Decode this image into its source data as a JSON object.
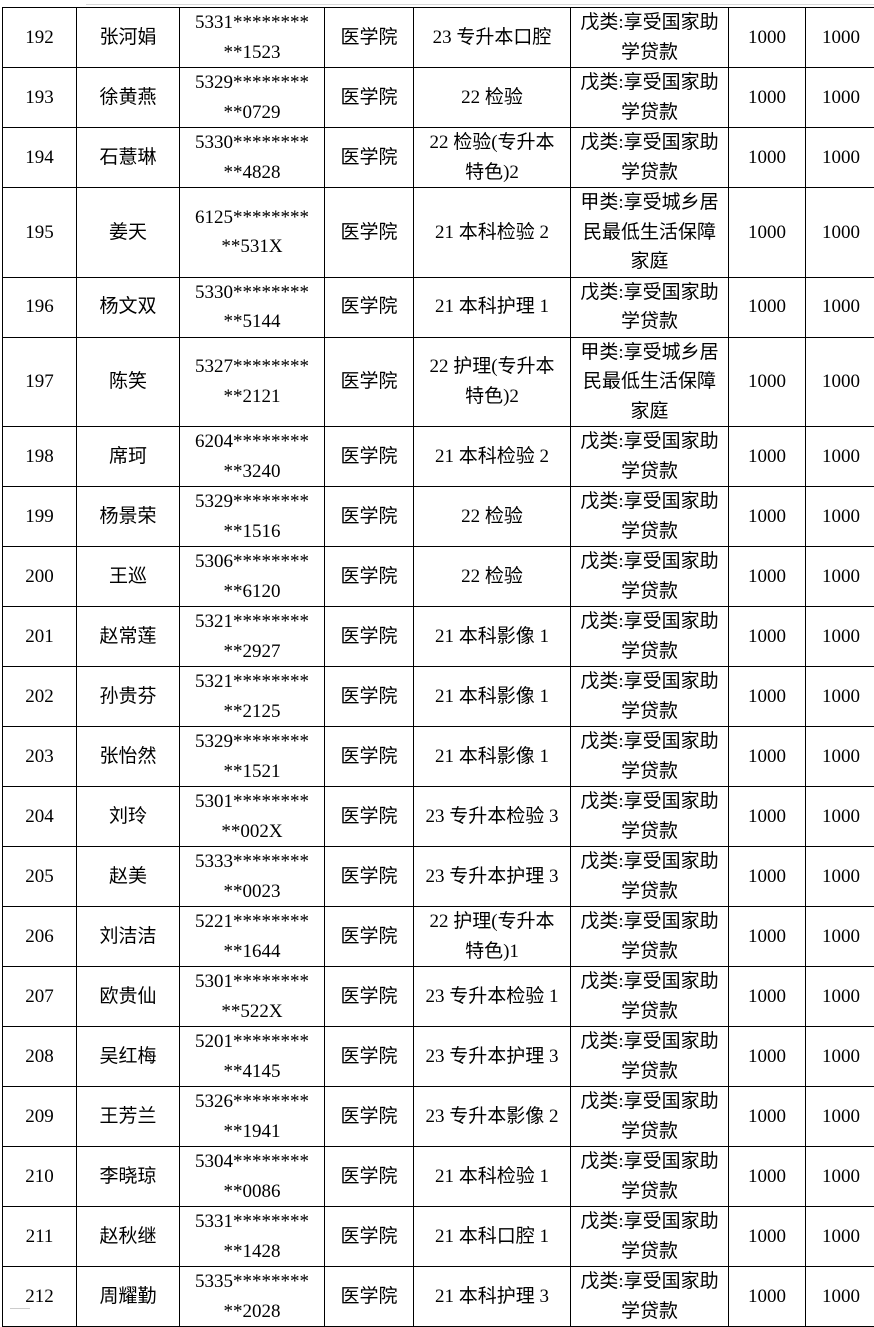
{
  "rows": [
    {
      "no": "192",
      "name": "张河娟",
      "id1": "5331********",
      "id2": "**1523",
      "college": "医学院",
      "class": "23 专升本口腔",
      "category": "戊类:享受国家助学贷款",
      "amount1": "1000",
      "amount2": "1000"
    },
    {
      "no": "193",
      "name": "徐黄燕",
      "id1": "5329********",
      "id2": "**0729",
      "college": "医学院",
      "class": "22 检验",
      "category": "戊类:享受国家助学贷款",
      "amount1": "1000",
      "amount2": "1000"
    },
    {
      "no": "194",
      "name": "石薏琳",
      "id1": "5330********",
      "id2": "**4828",
      "college": "医学院",
      "class": "22 检验(专升本特色)2",
      "category": "戊类:享受国家助学贷款",
      "amount1": "1000",
      "amount2": "1000"
    },
    {
      "no": "195",
      "name": "姜天",
      "id1": "6125********",
      "id2": "**531X",
      "college": "医学院",
      "class": "21 本科检验 2",
      "category": "甲类:享受城乡居民最低生活保障家庭",
      "amount1": "1000",
      "amount2": "1000"
    },
    {
      "no": "196",
      "name": "杨文双",
      "id1": "5330********",
      "id2": "**5144",
      "college": "医学院",
      "class": "21 本科护理 1",
      "category": "戊类:享受国家助学贷款",
      "amount1": "1000",
      "amount2": "1000"
    },
    {
      "no": "197",
      "name": "陈笑",
      "id1": "5327********",
      "id2": "**2121",
      "college": "医学院",
      "class": "22 护理(专升本特色)2",
      "category": "甲类:享受城乡居民最低生活保障家庭",
      "amount1": "1000",
      "amount2": "1000"
    },
    {
      "no": "198",
      "name": "席珂",
      "id1": "6204********",
      "id2": "**3240",
      "college": "医学院",
      "class": "21 本科检验 2",
      "category": "戊类:享受国家助学贷款",
      "amount1": "1000",
      "amount2": "1000"
    },
    {
      "no": "199",
      "name": "杨景荣",
      "id1": "5329********",
      "id2": "**1516",
      "college": "医学院",
      "class": "22 检验",
      "category": "戊类:享受国家助学贷款",
      "amount1": "1000",
      "amount2": "1000"
    },
    {
      "no": "200",
      "name": "王巡",
      "id1": "5306********",
      "id2": "**6120",
      "college": "医学院",
      "class": "22 检验",
      "category": "戊类:享受国家助学贷款",
      "amount1": "1000",
      "amount2": "1000"
    },
    {
      "no": "201",
      "name": "赵常莲",
      "id1": "5321********",
      "id2": "**2927",
      "college": "医学院",
      "class": "21 本科影像 1",
      "category": "戊类:享受国家助学贷款",
      "amount1": "1000",
      "amount2": "1000"
    },
    {
      "no": "202",
      "name": "孙贵芬",
      "id1": "5321********",
      "id2": "**2125",
      "college": "医学院",
      "class": "21 本科影像 1",
      "category": "戊类:享受国家助学贷款",
      "amount1": "1000",
      "amount2": "1000"
    },
    {
      "no": "203",
      "name": "张怡然",
      "id1": "5329********",
      "id2": "**1521",
      "college": "医学院",
      "class": "21 本科影像 1",
      "category": "戊类:享受国家助学贷款",
      "amount1": "1000",
      "amount2": "1000"
    },
    {
      "no": "204",
      "name": "刘玲",
      "id1": "5301********",
      "id2": "**002X",
      "college": "医学院",
      "class": "23 专升本检验 3",
      "category": "戊类:享受国家助学贷款",
      "amount1": "1000",
      "amount2": "1000"
    },
    {
      "no": "205",
      "name": "赵美",
      "id1": "5333********",
      "id2": "**0023",
      "college": "医学院",
      "class": "23 专升本护理 3",
      "category": "戊类:享受国家助学贷款",
      "amount1": "1000",
      "amount2": "1000"
    },
    {
      "no": "206",
      "name": "刘洁洁",
      "id1": "5221********",
      "id2": "**1644",
      "college": "医学院",
      "class": "22 护理(专升本特色)1",
      "category": "戊类:享受国家助学贷款",
      "amount1": "1000",
      "amount2": "1000"
    },
    {
      "no": "207",
      "name": "欧贵仙",
      "id1": "5301********",
      "id2": "**522X",
      "college": "医学院",
      "class": "23 专升本检验 1",
      "category": "戊类:享受国家助学贷款",
      "amount1": "1000",
      "amount2": "1000"
    },
    {
      "no": "208",
      "name": "吴红梅",
      "id1": "5201********",
      "id2": "**4145",
      "college": "医学院",
      "class": "23 专升本护理 3",
      "category": "戊类:享受国家助学贷款",
      "amount1": "1000",
      "amount2": "1000"
    },
    {
      "no": "209",
      "name": "王芳兰",
      "id1": "5326********",
      "id2": "**1941",
      "college": "医学院",
      "class": "23 专升本影像 2",
      "category": "戊类:享受国家助学贷款",
      "amount1": "1000",
      "amount2": "1000"
    },
    {
      "no": "210",
      "name": "李晓琼",
      "id1": "5304********",
      "id2": "**0086",
      "college": "医学院",
      "class": "21 本科检验 1",
      "category": "戊类:享受国家助学贷款",
      "amount1": "1000",
      "amount2": "1000"
    },
    {
      "no": "211",
      "name": "赵秋继",
      "id1": "5331********",
      "id2": "**1428",
      "college": "医学院",
      "class": "21 本科口腔 1",
      "category": "戊类:享受国家助学贷款",
      "amount1": "1000",
      "amount2": "1000"
    },
    {
      "no": "212",
      "name": "周耀勤",
      "id1": "5335********",
      "id2": "**2028",
      "college": "医学院",
      "class": "21 本科护理 3",
      "category": "戊类:享受国家助学贷款",
      "amount1": "1000",
      "amount2": "1000"
    }
  ]
}
